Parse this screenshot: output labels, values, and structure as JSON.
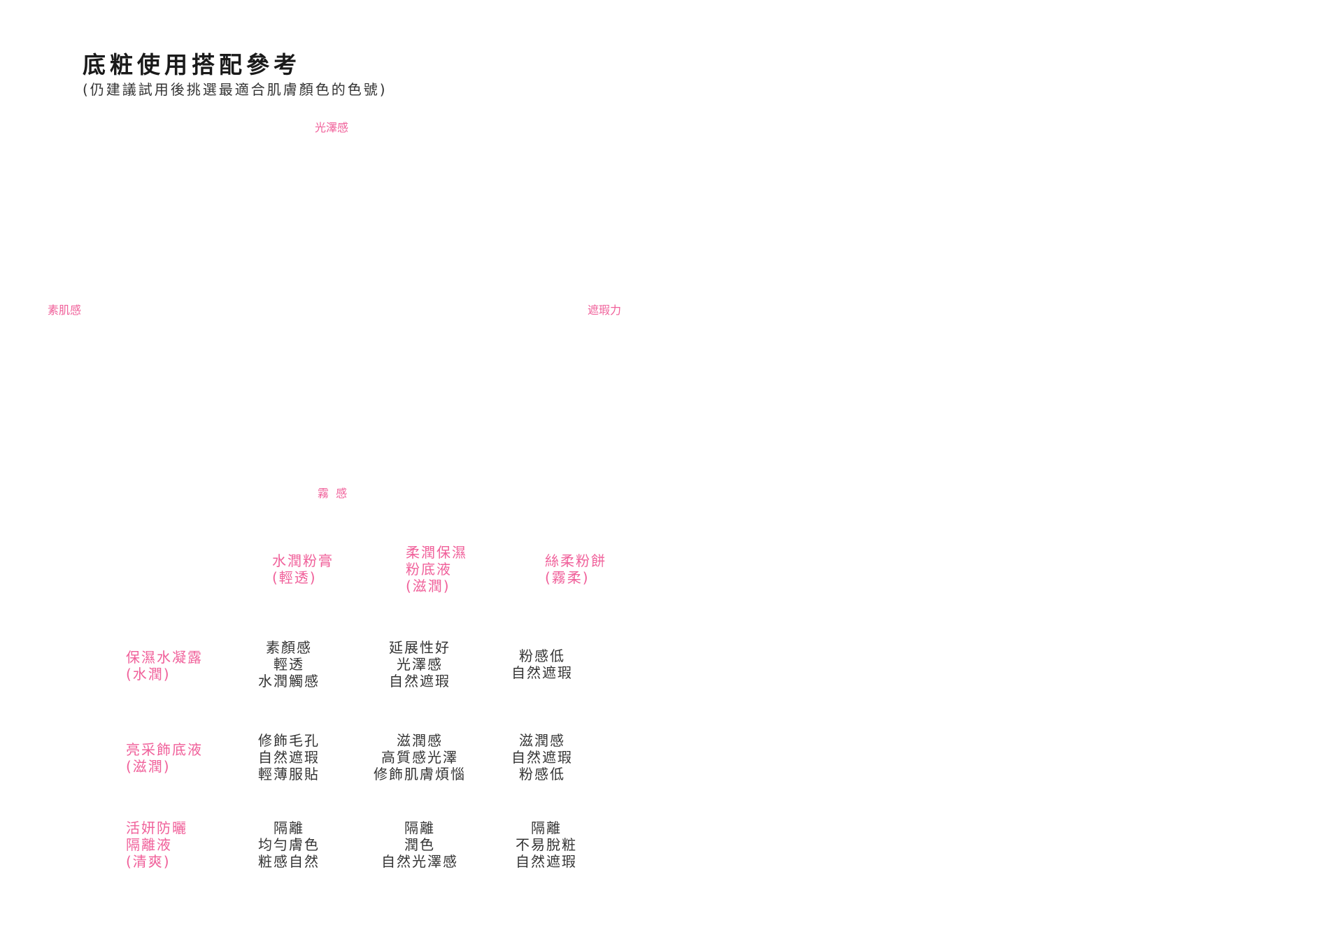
{
  "title": "底粧使用搭配參考",
  "subtitle": "(仍建議試用後挑選最適合肌膚顏色的色號)",
  "accent_color": "#f0609a",
  "axis": {
    "top": "光澤感",
    "left": "素肌感",
    "right": "遮瑕力",
    "bottom": "霧  感"
  },
  "table": {
    "columns": [
      "水潤粉膏\n(輕透)",
      "柔潤保濕\n粉底液\n(滋潤)",
      "絲柔粉餅\n(霧柔)"
    ],
    "rows": [
      {
        "label": "保濕水凝露\n(水潤)",
        "cells": [
          "素顏感\n輕透\n水潤觸感",
          "延展性好\n光澤感\n自然遮瑕",
          "粉感低\n自然遮瑕"
        ]
      },
      {
        "label": "亮采飾底液\n(滋潤)",
        "cells": [
          "修飾毛孔\n自然遮瑕\n輕薄服貼",
          "滋潤感\n高質感光澤\n修飾肌膚煩惱",
          "滋潤感\n自然遮瑕\n粉感低"
        ]
      },
      {
        "label": "活妍防曬\n隔離液\n(清爽)",
        "cells": [
          "隔離\n均勻膚色\n粧感自然",
          "隔離\n潤色\n自然光澤感",
          "隔離\n不易脫粧\n自然遮瑕"
        ]
      }
    ]
  }
}
